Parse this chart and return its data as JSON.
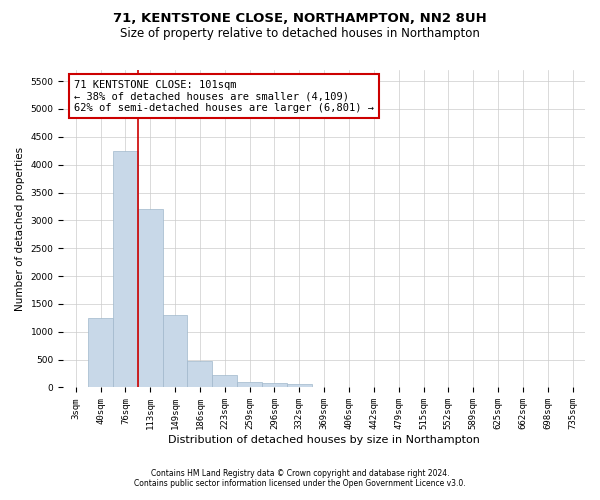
{
  "title": "71, KENTSTONE CLOSE, NORTHAMPTON, NN2 8UH",
  "subtitle": "Size of property relative to detached houses in Northampton",
  "xlabel": "Distribution of detached houses by size in Northampton",
  "ylabel": "Number of detached properties",
  "footer_line1": "Contains HM Land Registry data © Crown copyright and database right 2024.",
  "footer_line2": "Contains public sector information licensed under the Open Government Licence v3.0.",
  "categories": [
    "3sqm",
    "40sqm",
    "76sqm",
    "113sqm",
    "149sqm",
    "186sqm",
    "223sqm",
    "259sqm",
    "296sqm",
    "332sqm",
    "369sqm",
    "406sqm",
    "442sqm",
    "479sqm",
    "515sqm",
    "552sqm",
    "589sqm",
    "625sqm",
    "662sqm",
    "698sqm",
    "735sqm"
  ],
  "values": [
    0,
    1250,
    4250,
    3200,
    1300,
    480,
    220,
    100,
    80,
    70,
    0,
    0,
    0,
    0,
    0,
    0,
    0,
    0,
    0,
    0,
    0
  ],
  "bar_color": "#c8d8e8",
  "bar_edge_color": "#a0b8cc",
  "red_line_x": 2.5,
  "ylim": [
    0,
    5700
  ],
  "yticks": [
    0,
    500,
    1000,
    1500,
    2000,
    2500,
    3000,
    3500,
    4000,
    4500,
    5000,
    5500
  ],
  "annotation_text": "71 KENTSTONE CLOSE: 101sqm\n← 38% of detached houses are smaller (4,109)\n62% of semi-detached houses are larger (6,801) →",
  "annotation_box_color": "#ffffff",
  "annotation_border_color": "#cc0000",
  "background_color": "#ffffff",
  "grid_color": "#cccccc",
  "title_fontsize": 9.5,
  "subtitle_fontsize": 8.5,
  "ylabel_fontsize": 7.5,
  "xlabel_fontsize": 8,
  "tick_fontsize": 6.5,
  "annotation_fontsize": 7.5,
  "footer_fontsize": 5.5
}
